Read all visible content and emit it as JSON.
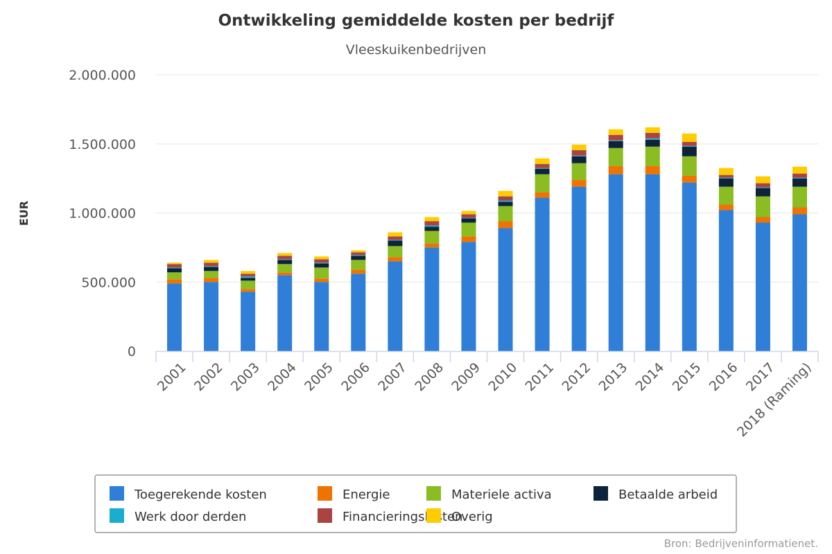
{
  "chart_data": {
    "type": "bar",
    "stacked": true,
    "title": "Ontwikkeling gemiddelde kosten per bedrijf",
    "subtitle": "Vleeskuikenbedrijven",
    "ylabel": "EUR",
    "xlabel": "",
    "ylim": [
      0,
      2000000
    ],
    "yticks": [
      0,
      500000,
      1000000,
      1500000,
      2000000
    ],
    "ytick_labels": [
      "0",
      "500.000",
      "1.000.000",
      "1.500.000",
      "2.000.000"
    ],
    "grid": true,
    "legend_position": "bottom",
    "credits": "Bron: Bedrijveninformatienet.",
    "categories": [
      "2001",
      "2002",
      "2003",
      "2004",
      "2005",
      "2006",
      "2007",
      "2008",
      "2009",
      "2010",
      "2011",
      "2012",
      "2013",
      "2014",
      "2015",
      "2016",
      "2017",
      "2018 (Raming)"
    ],
    "series": [
      {
        "name": "Toegerekende kosten",
        "color": "#2f7ed8",
        "values": [
          490000,
          500000,
          430000,
          550000,
          500000,
          560000,
          650000,
          750000,
          790000,
          890000,
          1110000,
          1190000,
          1280000,
          1280000,
          1220000,
          1020000,
          930000,
          990000
        ]
      },
      {
        "name": "Energie",
        "color": "#ef7300",
        "values": [
          30000,
          30000,
          20000,
          20000,
          25000,
          30000,
          30000,
          30000,
          40000,
          50000,
          40000,
          50000,
          60000,
          60000,
          50000,
          40000,
          40000,
          50000
        ]
      },
      {
        "name": "Materiele activa",
        "color": "#8bbc21",
        "values": [
          50000,
          50000,
          60000,
          60000,
          80000,
          70000,
          80000,
          90000,
          100000,
          110000,
          130000,
          120000,
          130000,
          140000,
          140000,
          130000,
          150000,
          150000
        ]
      },
      {
        "name": "Betaalde arbeid",
        "color": "#0d233a",
        "values": [
          30000,
          30000,
          20000,
          30000,
          30000,
          30000,
          40000,
          30000,
          30000,
          30000,
          40000,
          50000,
          50000,
          50000,
          70000,
          60000,
          60000,
          60000
        ]
      },
      {
        "name": "Werk door derden",
        "color": "#1aadce",
        "values": [
          5000,
          5000,
          10000,
          5000,
          5000,
          5000,
          5000,
          10000,
          5000,
          10000,
          5000,
          5000,
          5000,
          10000,
          5000,
          5000,
          5000,
          5000
        ]
      },
      {
        "name": "Financieringslasten",
        "color": "#a94442",
        "values": [
          25000,
          25000,
          20000,
          25000,
          25000,
          20000,
          25000,
          30000,
          25000,
          30000,
          30000,
          40000,
          40000,
          40000,
          30000,
          20000,
          30000,
          30000
        ]
      },
      {
        "name": "Overig",
        "color": "#ffcc00",
        "values": [
          10000,
          20000,
          20000,
          20000,
          20000,
          15000,
          30000,
          30000,
          25000,
          40000,
          40000,
          40000,
          40000,
          40000,
          60000,
          50000,
          50000,
          50000
        ]
      }
    ]
  }
}
